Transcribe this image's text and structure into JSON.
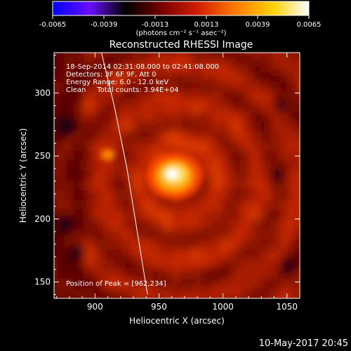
{
  "chart_data": {
    "type": "heatmap",
    "title": "Reconstructed RHESSI Image",
    "xlabel": "Heliocentric X (arcsec)",
    "ylabel": "Heliocentric Y (arcsec)",
    "xlim": [
      868,
      1060
    ],
    "ylim": [
      137,
      332
    ],
    "x_ticks": [
      900,
      950,
      1000,
      1050
    ],
    "y_ticks": [
      150,
      200,
      250,
      300
    ],
    "colorbar": {
      "min": -0.0065,
      "max": 0.0065,
      "ticks": [
        "-0.0065",
        "-0.0039",
        "-0.0013",
        "0.0013",
        "0.0039",
        "0.0065"
      ],
      "tick_values": [
        -0.0065,
        -0.0039,
        -0.0013,
        0.0013,
        0.0039,
        0.0065
      ],
      "units_label": "(photons cm⁻² s⁻¹ asec⁻²)",
      "colormap": [
        "#0000ff",
        "#6a0fff",
        "#000000",
        "#7a0000",
        "#d42000",
        "#ff7a00",
        "#ffd000",
        "#ffffff"
      ]
    },
    "annotations": [
      "18-Sep-2014 02:31:08.000 to 02:41:08.000",
      "Detectors: 3F 6F 9F, Att 0",
      "Energy Range: 6.0 - 12.0 keV",
      "Clean     Total counts: 3.94E+04"
    ],
    "peak_label": "Position of Peak = [962,234]",
    "peak": [
      962,
      234
    ],
    "limb_points": [
      [
        905,
        332
      ],
      [
        915,
        290
      ],
      [
        925,
        240
      ],
      [
        933,
        190
      ],
      [
        941,
        140
      ]
    ],
    "footer_date": "10-May-2017 20:45"
  }
}
